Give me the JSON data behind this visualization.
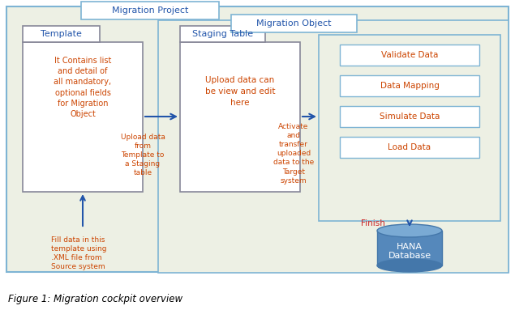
{
  "bg_color": "#edf0e4",
  "outer_border_color": "#7eb4d4",
  "inner_border_color": "#7eb4d4",
  "box_edge_color": "#888899",
  "btn_edge_color": "#7eb4d4",
  "orange_text": "#cc4400",
  "blue_text": "#2255aa",
  "arrow_color": "#2255aa",
  "finish_color": "#cc2222",
  "figure_caption": "Figure 1: Migration cockpit overview",
  "migration_project_label": "Migration Project",
  "migration_object_label": "Migration Object",
  "template_title": "Template",
  "template_body": "It Contains list\nand detail of\nall mandatory,\noptional fields\nfor Migration\nObject",
  "staging_title": "Staging Table",
  "staging_body": "Upload data can\nbe view and edit\nhere",
  "label_upload": "Upload data\nfrom\nTemplate to\na Staging\ntable",
  "label_activate": "Activate\nand\ntransfer\nuploaded\ndata to the\nTarget\nsystem",
  "label_fill": "Fill data in this\ntemplate using\n.XML file from\nSource system",
  "label_finish": "Finish",
  "right_box_buttons": [
    "Validate Data",
    "Data Mapping",
    "Simulate Data",
    "Load Data"
  ],
  "hana_label": "HANA\nDatabase",
  "white": "#ffffff",
  "light_bg": "#edf0e4",
  "cyl_top": "#7aaad4",
  "cyl_mid": "#5588bb",
  "cyl_bot": "#4477aa"
}
